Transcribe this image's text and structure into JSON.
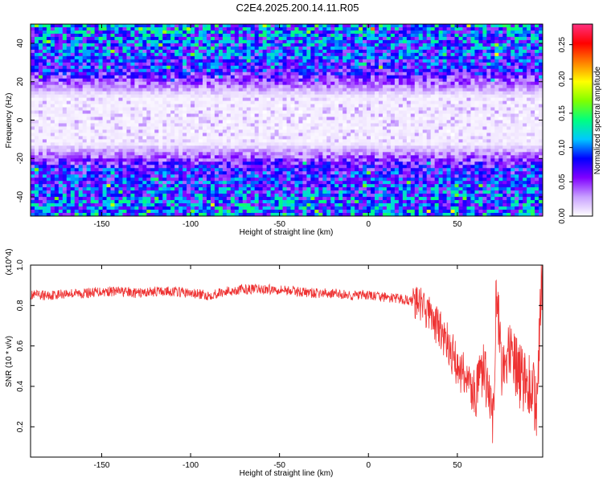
{
  "title": "C2E4.2025.200.14.11.R05",
  "chart_data": [
    {
      "type": "heatmap",
      "name": "spectrogram",
      "xlabel": "Height of straight line (km)",
      "ylabel": "Frequency (Hz)",
      "xlim": [
        -190,
        98
      ],
      "ylim": [
        -50,
        50
      ],
      "xticks": [
        -150,
        -100,
        -50,
        0,
        50
      ],
      "yticks": [
        -40,
        -20,
        0,
        20,
        40
      ],
      "colorbar": {
        "label": "Normalized spectral amplitude",
        "range": [
          0,
          0.28
        ],
        "ticks": [
          0.0,
          0.05,
          0.1,
          0.15,
          0.2,
          0.25
        ],
        "colormap": [
          "#ffffff",
          "#c8a0ff",
          "#8000ff",
          "#0000ff",
          "#00c8ff",
          "#00ff80",
          "#80ff00",
          "#ffff00",
          "#ff8000",
          "#ff0000",
          "#ff3080"
        ]
      },
      "pattern": {
        "description": "noise-like amplitude field, quiet (white) band centered near 0 Hz, stronger amplitudes toward ±40 Hz",
        "quiet_band_hz": [
          -12,
          12
        ],
        "transition_hz": 25
      }
    },
    {
      "type": "line",
      "name": "snr",
      "xlabel": "Height of straight line (km)",
      "ylabel": "SNR (10 * v/v)",
      "y_multiplier": "(x10^4)",
      "xlim": [
        -190,
        98
      ],
      "ylim": [
        0.05,
        1.0
      ],
      "xticks": [
        -150,
        -100,
        -50,
        0,
        50
      ],
      "yticks": [
        0.2,
        0.4,
        0.6,
        0.8,
        1.0
      ],
      "color": "#ee3333",
      "series": [
        {
          "x": [
            -190,
            -180,
            -170,
            -160,
            -150,
            -140,
            -130,
            -120,
            -110,
            -100,
            -90,
            -80,
            -70,
            -60,
            -50,
            -40,
            -30,
            -20,
            -10,
            0,
            10,
            20,
            25,
            30,
            35,
            40,
            45,
            50,
            55,
            60,
            65,
            70,
            72,
            75,
            80,
            85,
            90,
            95,
            97
          ],
          "values": [
            0.85,
            0.85,
            0.86,
            0.86,
            0.87,
            0.87,
            0.86,
            0.87,
            0.87,
            0.86,
            0.85,
            0.87,
            0.88,
            0.88,
            0.88,
            0.87,
            0.86,
            0.86,
            0.85,
            0.85,
            0.84,
            0.83,
            0.82,
            0.8,
            0.75,
            0.68,
            0.6,
            0.5,
            0.45,
            0.35,
            0.5,
            0.2,
            0.9,
            0.5,
            0.55,
            0.45,
            0.42,
            0.3,
            0.9
          ]
        }
      ]
    }
  ]
}
